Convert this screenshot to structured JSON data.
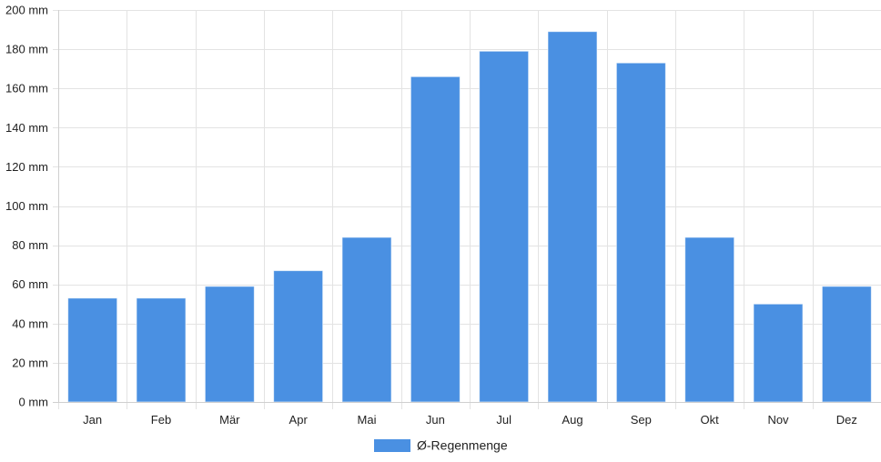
{
  "chart_data": {
    "type": "bar",
    "categories": [
      "Jan",
      "Feb",
      "Mär",
      "Apr",
      "Mai",
      "Jun",
      "Jul",
      "Aug",
      "Sep",
      "Okt",
      "Nov",
      "Dez"
    ],
    "series": [
      {
        "name": "Ø-Regenmenge",
        "color": "#4a90e2",
        "values": [
          53,
          53,
          59,
          67,
          84,
          166,
          179,
          189,
          173,
          84,
          50,
          59
        ]
      }
    ],
    "y_unit": "mm",
    "ylim": [
      0,
      200
    ],
    "y_ticks": [
      0,
      20,
      40,
      60,
      80,
      100,
      120,
      140,
      160,
      180,
      200
    ],
    "y_tick_labels": [
      "0 mm",
      "20 mm",
      "40 mm",
      "60 mm",
      "80 mm",
      "100 mm",
      "120 mm",
      "140 mm",
      "160 mm",
      "180 mm",
      "200 mm"
    ],
    "grid": true,
    "legend_position": "bottom",
    "grid_color": "#e3e3e3",
    "axis_color": "#cfcfcf"
  }
}
